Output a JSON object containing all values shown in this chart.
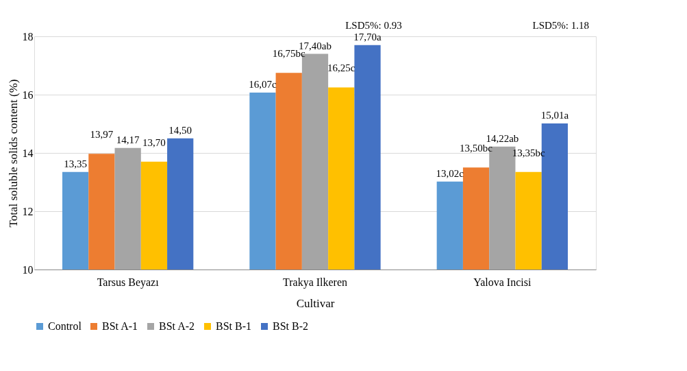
{
  "chart_data": {
    "type": "bar",
    "xlabel": "Cultivar",
    "ylabel": "Total soluble solids content (%)",
    "categories": [
      "Tarsus Beyazı",
      "Trakya Ilkeren",
      "Yalova Incisi"
    ],
    "series": [
      {
        "name": "Control",
        "color": "#5b9bd5",
        "values": [
          13.35,
          16.07,
          13.02
        ],
        "value_labels": [
          "13,35",
          "16,07c",
          "13,02c"
        ]
      },
      {
        "name": "BSt A-1",
        "color": "#ed7d31",
        "values": [
          13.97,
          16.75,
          13.5
        ],
        "value_labels": [
          "13,97",
          "16,75bc",
          "13,50bc"
        ]
      },
      {
        "name": "BSt A-2",
        "color": "#a5a5a5",
        "values": [
          14.17,
          17.4,
          14.22
        ],
        "value_labels": [
          "14,17",
          "17,40ab",
          "14,22ab"
        ]
      },
      {
        "name": "BSt B-1",
        "color": "#ffc000",
        "values": [
          13.7,
          16.25,
          13.35
        ],
        "value_labels": [
          "13,70",
          "16,25c",
          "13,35bc"
        ]
      },
      {
        "name": "BSt B-2",
        "color": "#4472c4",
        "values": [
          14.5,
          17.7,
          15.01
        ],
        "value_labels": [
          "14,50",
          "17,70a",
          "15,01a"
        ]
      }
    ],
    "annotations": [
      "LSD5%: 0.93",
      "LSD5%: 1.18"
    ],
    "ylim": [
      10,
      18
    ],
    "yticks": [
      10,
      12,
      14,
      16,
      18
    ],
    "grid": "y",
    "legend": "bottom"
  }
}
